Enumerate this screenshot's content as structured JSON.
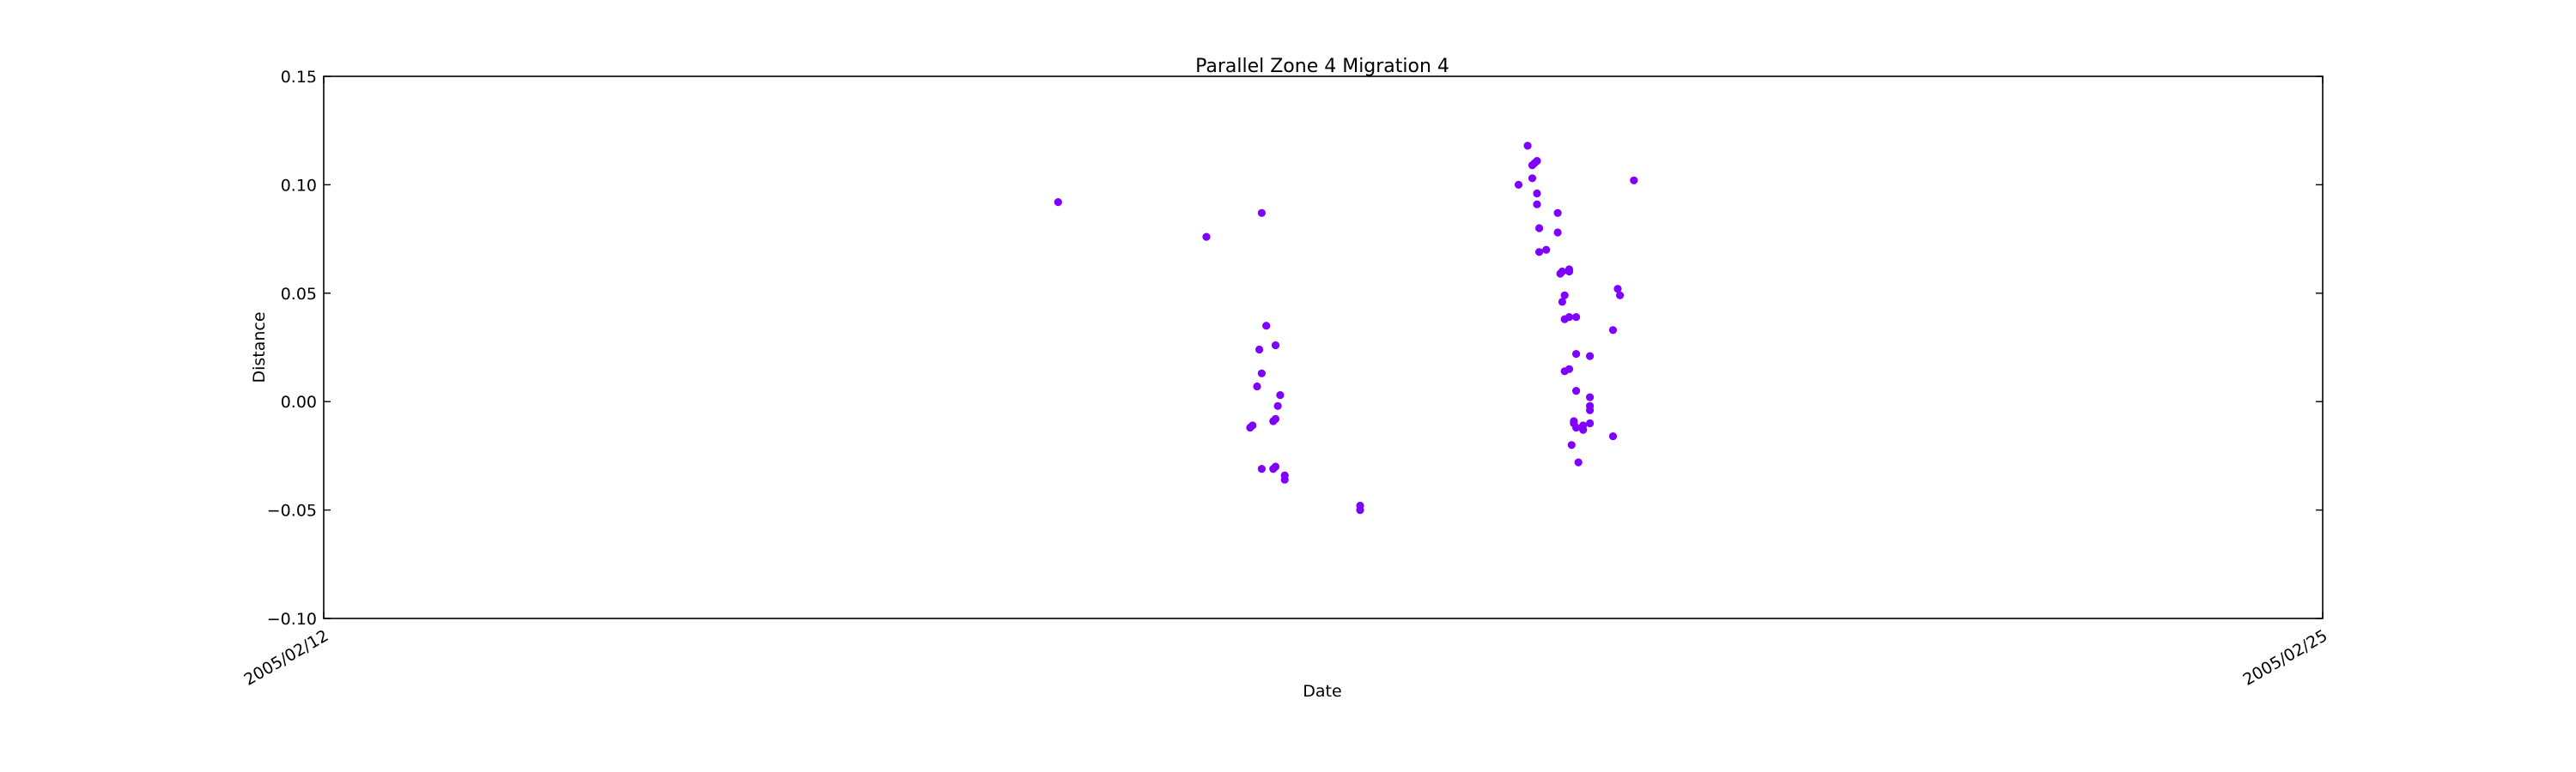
{
  "chart_data": {
    "type": "scatter",
    "title": "Parallel Zone 4 Migration 4",
    "xlabel": "Date",
    "ylabel": "Distance",
    "x_ticks": [
      "2005/02/12",
      "2005/02/25"
    ],
    "y_ticks": [
      "0.15",
      "0.10",
      "0.05",
      "0.00",
      "−0.05",
      "−0.10"
    ],
    "xlim": [
      "2005-02-12T00:00",
      "2005-02-25T00:00"
    ],
    "ylim": [
      -0.1,
      0.15
    ],
    "grid": false,
    "legend": "none",
    "marker_color": "#7f00ff",
    "series": [
      {
        "points": [
          {
            "x": "2005-02-16T18:38",
            "y": 0.092
          },
          {
            "x": "2005-02-17T17:46",
            "y": 0.076
          },
          {
            "x": "2005-02-18T02:24",
            "y": 0.087
          },
          {
            "x": "2005-02-18T03:07",
            "y": 0.035
          },
          {
            "x": "2005-02-18T02:02",
            "y": 0.024
          },
          {
            "x": "2005-02-18T04:34",
            "y": 0.026
          },
          {
            "x": "2005-02-18T02:24",
            "y": 0.013
          },
          {
            "x": "2005-02-18T01:41",
            "y": 0.007
          },
          {
            "x": "2005-02-18T05:17",
            "y": 0.003
          },
          {
            "x": "2005-02-18T04:55",
            "y": -0.002
          },
          {
            "x": "2005-02-18T04:34",
            "y": -0.008
          },
          {
            "x": "2005-02-18T04:12",
            "y": -0.009
          },
          {
            "x": "2005-02-18T00:58",
            "y": -0.011
          },
          {
            "x": "2005-02-18T00:36",
            "y": -0.012
          },
          {
            "x": "2005-02-18T02:24",
            "y": -0.031
          },
          {
            "x": "2005-02-18T04:12",
            "y": -0.031
          },
          {
            "x": "2005-02-18T04:34",
            "y": -0.03
          },
          {
            "x": "2005-02-18T06:00",
            "y": -0.034
          },
          {
            "x": "2005-02-18T06:00",
            "y": -0.036
          },
          {
            "x": "2005-02-18T17:46",
            "y": -0.048
          },
          {
            "x": "2005-02-18T17:46",
            "y": -0.05
          },
          {
            "x": "2005-02-19T19:55",
            "y": 0.118
          },
          {
            "x": "2005-02-19T21:22",
            "y": 0.111
          },
          {
            "x": "2005-02-19T20:38",
            "y": 0.109
          },
          {
            "x": "2005-02-19T21:00",
            "y": 0.11
          },
          {
            "x": "2005-02-19T18:29",
            "y": 0.1
          },
          {
            "x": "2005-02-19T20:38",
            "y": 0.103
          },
          {
            "x": "2005-02-19T21:22",
            "y": 0.096
          },
          {
            "x": "2005-02-19T21:22",
            "y": 0.091
          },
          {
            "x": "2005-02-20T00:36",
            "y": 0.087
          },
          {
            "x": "2005-02-19T21:43",
            "y": 0.08
          },
          {
            "x": "2005-02-20T00:36",
            "y": 0.078
          },
          {
            "x": "2005-02-19T22:48",
            "y": 0.07
          },
          {
            "x": "2005-02-19T21:43",
            "y": 0.069
          },
          {
            "x": "2005-02-20T02:24",
            "y": 0.061
          },
          {
            "x": "2005-02-20T01:19",
            "y": 0.06
          },
          {
            "x": "2005-02-20T01:00",
            "y": 0.059
          },
          {
            "x": "2005-02-20T02:24",
            "y": 0.06
          },
          {
            "x": "2005-02-20T01:41",
            "y": 0.049
          },
          {
            "x": "2005-02-20T01:19",
            "y": 0.046
          },
          {
            "x": "2005-02-20T02:24",
            "y": 0.039
          },
          {
            "x": "2005-02-20T01:41",
            "y": 0.038
          },
          {
            "x": "2005-02-20T03:29",
            "y": 0.039
          },
          {
            "x": "2005-02-20T03:29",
            "y": 0.022
          },
          {
            "x": "2005-02-20T05:38",
            "y": 0.021
          },
          {
            "x": "2005-02-20T02:24",
            "y": 0.015
          },
          {
            "x": "2005-02-20T01:41",
            "y": 0.014
          },
          {
            "x": "2005-02-20T03:29",
            "y": 0.005
          },
          {
            "x": "2005-02-20T05:38",
            "y": 0.002
          },
          {
            "x": "2005-02-20T05:38",
            "y": -0.002
          },
          {
            "x": "2005-02-20T05:38",
            "y": -0.004
          },
          {
            "x": "2005-02-20T03:07",
            "y": -0.009
          },
          {
            "x": "2005-02-20T03:07",
            "y": -0.01
          },
          {
            "x": "2005-02-20T05:38",
            "y": -0.01
          },
          {
            "x": "2005-02-20T04:34",
            "y": -0.011
          },
          {
            "x": "2005-02-20T04:34",
            "y": -0.013
          },
          {
            "x": "2005-02-20T03:29",
            "y": -0.012
          },
          {
            "x": "2005-02-20T02:46",
            "y": -0.02
          },
          {
            "x": "2005-02-20T03:50",
            "y": -0.028
          },
          {
            "x": "2005-02-20T09:14",
            "y": 0.033
          },
          {
            "x": "2005-02-20T09:58",
            "y": 0.052
          },
          {
            "x": "2005-02-20T10:19",
            "y": 0.049
          },
          {
            "x": "2005-02-20T09:14",
            "y": -0.016
          },
          {
            "x": "2005-02-20T12:29",
            "y": 0.102
          }
        ]
      }
    ]
  }
}
